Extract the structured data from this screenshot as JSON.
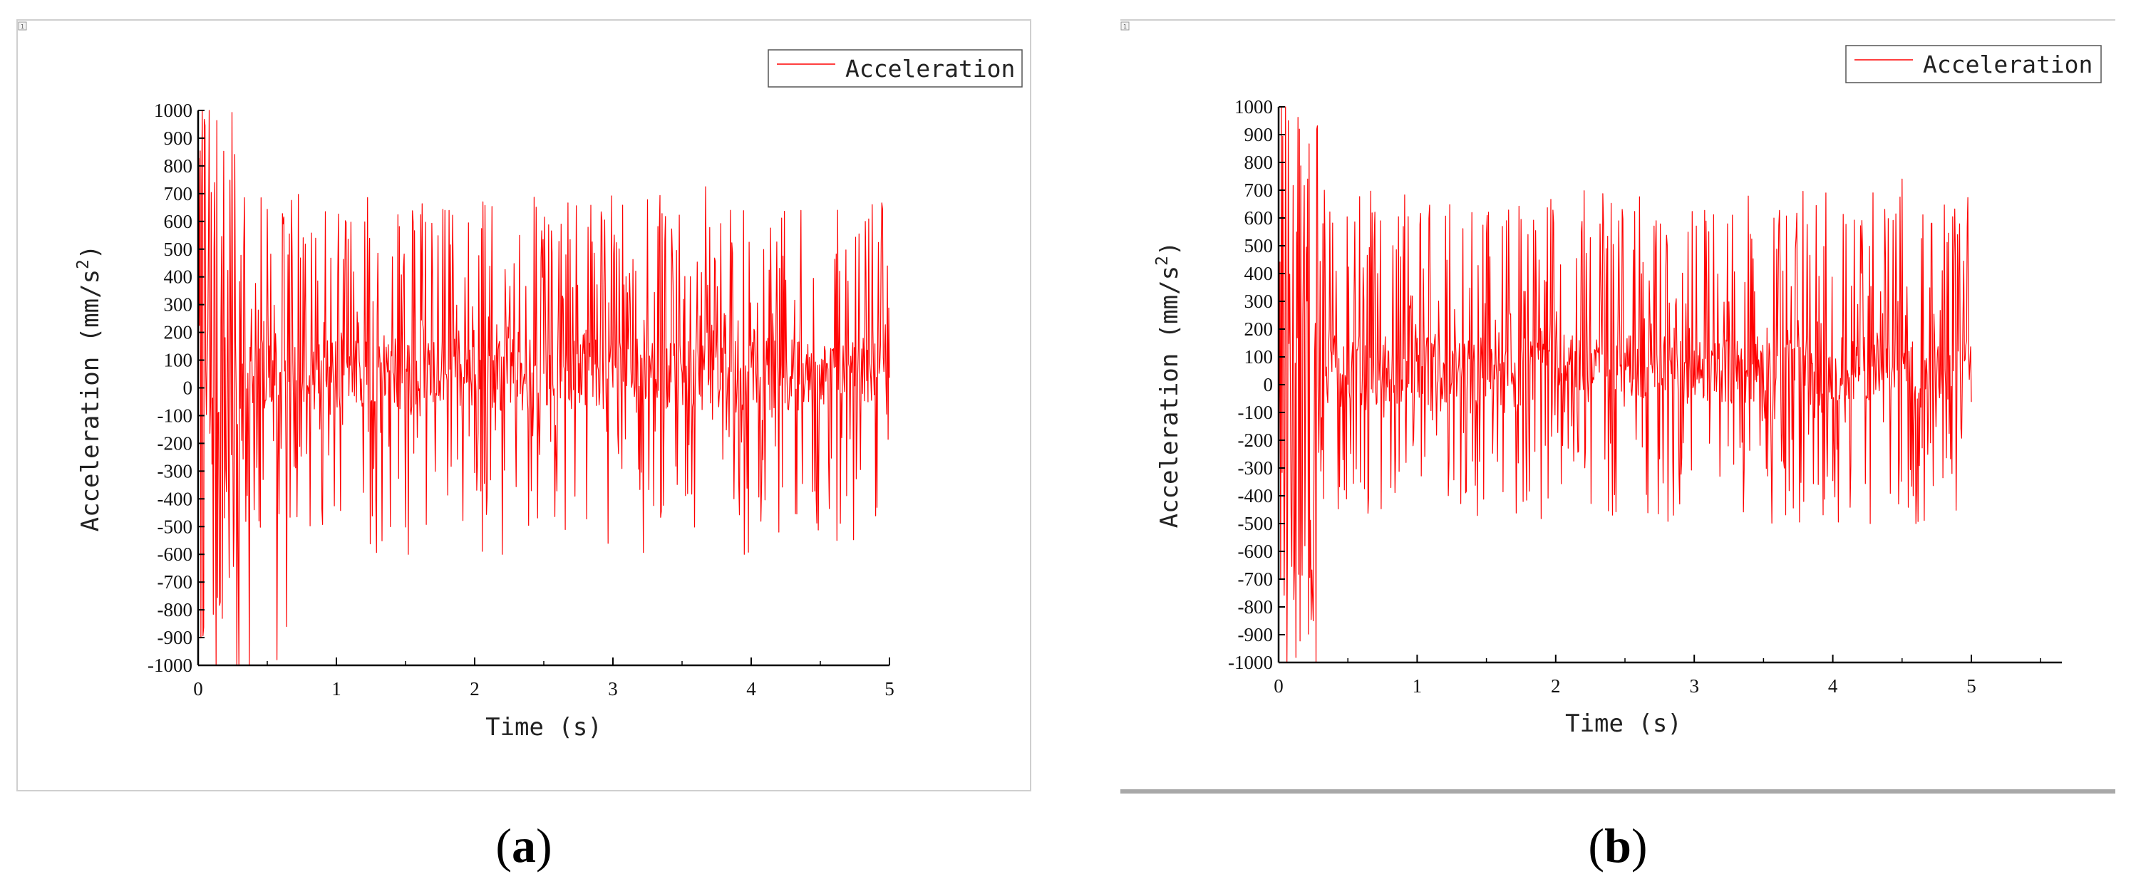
{
  "figure": {
    "panel_labels": [
      {
        "open": "(",
        "letter": "a",
        "close": ")"
      },
      {
        "open": "(",
        "letter": "b",
        "close": ")"
      }
    ],
    "corner_marker": "1",
    "colors": {
      "signal": "#ff0000",
      "axis": "#000000",
      "frame": "#bdbdbd",
      "bottom_rule": "#a8a8a8"
    }
  },
  "chart_data": [
    {
      "type": "line",
      "panel": "(a)",
      "title": "",
      "xlabel": "Time (s)",
      "ylabel": "Acceleration (mm/s",
      "ylabel_sup": "2",
      "ylabel_close": ")",
      "xlim": [
        0,
        5
      ],
      "ylim": [
        -1000,
        1000
      ],
      "xticks": [
        "0",
        "1",
        "2",
        "3",
        "4",
        "5"
      ],
      "yticks": [
        "-1000",
        "-900",
        "-800",
        "-700",
        "-600",
        "-500",
        "-400",
        "-300",
        "-200",
        "-100",
        "0",
        "100",
        "200",
        "300",
        "400",
        "500",
        "600",
        "700",
        "800",
        "900",
        "1000"
      ],
      "grid": false,
      "legend_position": "top-right",
      "series": [
        {
          "name": "Acceleration",
          "color": "#ff0000",
          "x_range": [
            0,
            5
          ],
          "samples": 1000,
          "seed": 7,
          "initial_spike": {
            "until": 0.3,
            "min": -1000,
            "max": 1000
          },
          "typical_range": [
            -600,
            700
          ],
          "notable_points": [
            {
              "x": 0.03,
              "y": 1000
            },
            {
              "x": 0.08,
              "y": 1000
            },
            {
              "x": 0.13,
              "y": -1000
            },
            {
              "x": 0.28,
              "y": -1000
            },
            {
              "x": 0.37,
              "y": -1000
            },
            {
              "x": 0.57,
              "y": -980
            },
            {
              "x": 0.64,
              "y": -860
            },
            {
              "x": 0.12,
              "y": 740
            },
            {
              "x": 3.67,
              "y": 725
            },
            {
              "x": 1.52,
              "y": -600
            },
            {
              "x": 2.2,
              "y": -600
            },
            {
              "x": 3.95,
              "y": -600
            },
            {
              "x": 4.2,
              "y": -520
            },
            {
              "x": 3.85,
              "y": 640
            },
            {
              "x": 4.95,
              "y": 645
            }
          ]
        }
      ]
    },
    {
      "type": "line",
      "panel": "(b)",
      "title": "",
      "xlabel": "Time (s)",
      "ylabel": "Acceleration (mm/s",
      "ylabel_sup": "2",
      "ylabel_close": ")",
      "xlim": [
        0,
        5
      ],
      "ylim": [
        -1000,
        1000
      ],
      "xticks": [
        "0",
        "1",
        "2",
        "3",
        "4",
        "5"
      ],
      "yticks": [
        "-1000",
        "-900",
        "-800",
        "-700",
        "-600",
        "-500",
        "-400",
        "-300",
        "-200",
        "-100",
        "0",
        "100",
        "200",
        "300",
        "400",
        "500",
        "600",
        "700",
        "800",
        "900",
        "1000"
      ],
      "grid": false,
      "legend_position": "top-right",
      "series": [
        {
          "name": "Acceleration",
          "color": "#ff0000",
          "x_range": [
            0,
            5
          ],
          "samples": 1000,
          "seed": 13,
          "initial_spike": {
            "until": 0.28,
            "min": -1000,
            "max": 1000
          },
          "typical_range": [
            -500,
            700
          ],
          "notable_points": [
            {
              "x": 0.02,
              "y": 1000
            },
            {
              "x": 0.05,
              "y": 1000
            },
            {
              "x": 0.06,
              "y": -1000
            },
            {
              "x": 0.15,
              "y": 920
            },
            {
              "x": 0.19,
              "y": -580
            },
            {
              "x": 0.25,
              "y": -850
            },
            {
              "x": 0.27,
              "y": -1000
            },
            {
              "x": 4.5,
              "y": 740
            },
            {
              "x": 3.95,
              "y": 690
            },
            {
              "x": 2.85,
              "y": -470
            },
            {
              "x": 4.27,
              "y": -500
            },
            {
              "x": 4.6,
              "y": -500
            },
            {
              "x": 4.9,
              "y": 540
            }
          ]
        }
      ]
    }
  ]
}
